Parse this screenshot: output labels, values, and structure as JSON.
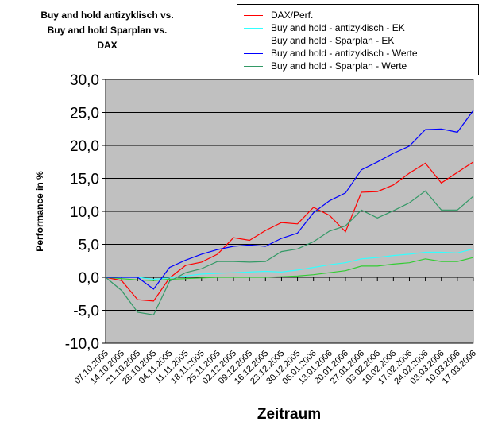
{
  "chart_data": {
    "type": "line",
    "title": "Buy and hold antizyklisch vs. Buy and hold Sparplan vs. DAX",
    "title_lines": [
      "Buy and hold antizyklisch vs.",
      "Buy and hold Sparplan vs.",
      "DAX"
    ],
    "xlabel": "Zeitraum",
    "ylabel": "Performance in %",
    "ylim": [
      -10,
      30
    ],
    "yticks": [
      "-10,0",
      "-5,0",
      "0,0",
      "5,0",
      "10,0",
      "15,0",
      "20,0",
      "25,0",
      "30,0"
    ],
    "grid": true,
    "legend_placement": "top-right",
    "plot_background": "#c0c0c0",
    "categories": [
      "07.10.2005",
      "14.10.2005",
      "21.10.2005",
      "28.10.2005",
      "04.11.2005",
      "11.11.2005",
      "18.11.2005",
      "25.11.2005",
      "02.12.2005",
      "09.12.2005",
      "16.12.2005",
      "23.12.2005",
      "30.12.2005",
      "06.01.2006",
      "13.01.2006",
      "20.01.2006",
      "27.01.2006",
      "03.02.2006",
      "10.02.2006",
      "17.02.2006",
      "24.02.2006",
      "03.03.2006",
      "10.03.2006",
      "17.03.2006"
    ],
    "series": [
      {
        "name": "DAX/Perf.",
        "color": "#ff0000",
        "values": [
          0,
          -0.5,
          -3.4,
          -3.6,
          -0.1,
          1.8,
          2.3,
          3.5,
          6.0,
          5.6,
          7.1,
          8.3,
          8.1,
          10.6,
          9.4,
          6.9,
          12.9,
          13.0,
          14.0,
          15.8,
          17.3,
          14.3,
          15.9,
          17.5
        ]
      },
      {
        "name": "Buy and hold - antizyklisch - EK",
        "color": "#33ffff",
        "values": [
          0,
          0,
          0,
          -0.3,
          -0.1,
          0.2,
          0.5,
          0.6,
          0.7,
          0.8,
          0.9,
          0.8,
          1.1,
          1.5,
          1.9,
          2.2,
          2.8,
          3.0,
          3.3,
          3.5,
          3.8,
          3.8,
          3.7,
          4.3
        ]
      },
      {
        "name": "Buy and hold - Sparplan - EK",
        "color": "#33cc33",
        "values": [
          0,
          -0.2,
          -0.4,
          -0.5,
          -0.3,
          -0.2,
          -0.1,
          0,
          0,
          0,
          0,
          0.1,
          0.2,
          0.4,
          0.7,
          1.0,
          1.7,
          1.7,
          2.0,
          2.2,
          2.8,
          2.4,
          2.4,
          3.0
        ]
      },
      {
        "name": "Buy and hold - antizyklisch - Werte",
        "color": "#0000ff",
        "values": [
          0,
          0,
          0,
          -1.8,
          1.5,
          2.6,
          3.5,
          4.2,
          4.7,
          4.9,
          4.7,
          5.9,
          6.7,
          9.8,
          11.6,
          12.8,
          16.3,
          17.5,
          18.8,
          19.9,
          22.4,
          22.5,
          22.0,
          25.3
        ]
      },
      {
        "name": "Buy and hold - Sparplan - Werte",
        "color": "#339966",
        "values": [
          0,
          -2.0,
          -5.3,
          -5.7,
          -0.6,
          0.7,
          1.3,
          2.4,
          2.4,
          2.3,
          2.4,
          3.9,
          4.3,
          5.4,
          7.0,
          7.8,
          10.2,
          9.0,
          10.1,
          11.3,
          13.1,
          10.2,
          10.2,
          12.3
        ]
      }
    ]
  }
}
